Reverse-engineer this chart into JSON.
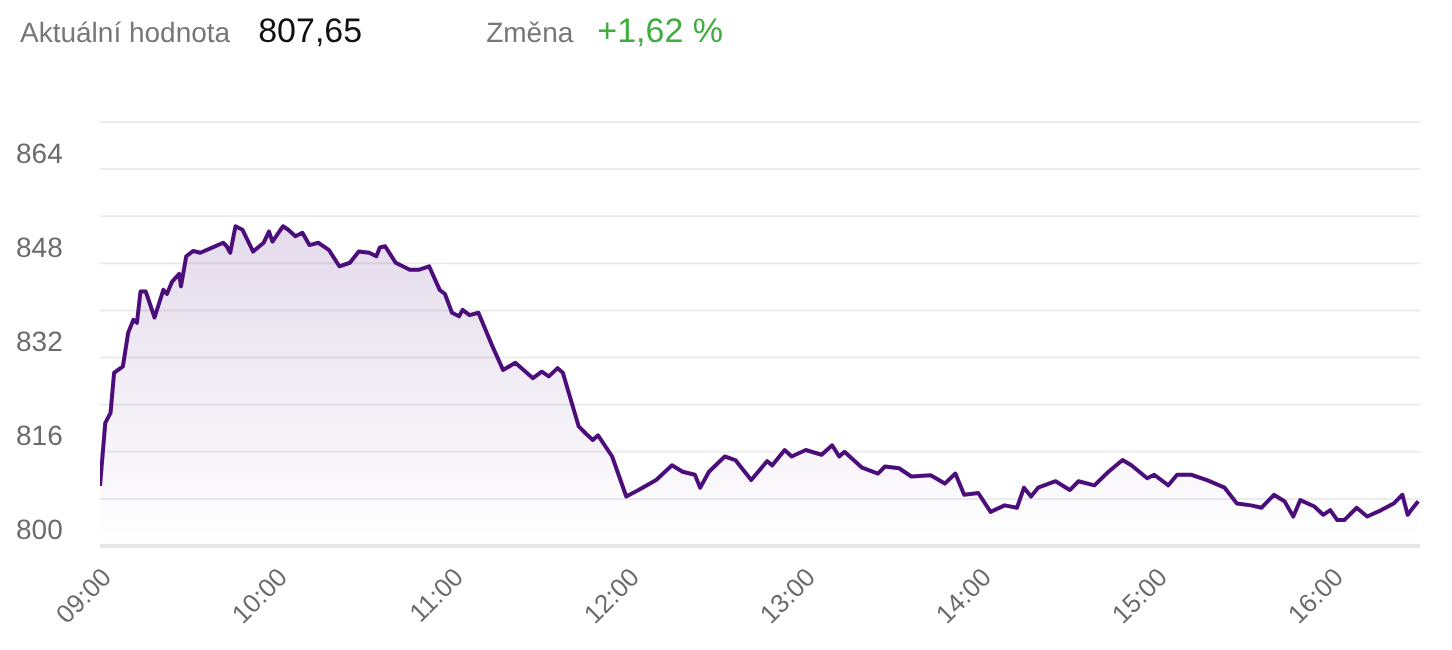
{
  "chart_data": {
    "type": "area",
    "annotations": [
      "Aktuální hodnota",
      "807,65",
      "Změna",
      "+1,62 %"
    ],
    "x": [
      9.0,
      9.03,
      9.06,
      9.08,
      9.13,
      9.16,
      9.19,
      9.21,
      9.23,
      9.26,
      9.31,
      9.36,
      9.38,
      9.41,
      9.45,
      9.46,
      9.49,
      9.53,
      9.57,
      9.64,
      9.7,
      9.72,
      9.74,
      9.77,
      9.81,
      9.87,
      9.93,
      9.96,
      9.98,
      10.04,
      10.07,
      10.11,
      10.15,
      10.19,
      10.24,
      10.3,
      10.36,
      10.42,
      10.47,
      10.53,
      10.57,
      10.59,
      10.62,
      10.68,
      10.76,
      10.81,
      10.87,
      10.93,
      10.96,
      11.0,
      11.04,
      11.06,
      11.1,
      11.15,
      11.23,
      11.29,
      11.36,
      11.46,
      11.51,
      11.55,
      11.6,
      11.63,
      11.72,
      11.76,
      11.8,
      11.83,
      11.91,
      11.99,
      12.06,
      12.16,
      12.25,
      12.31,
      12.38,
      12.41,
      12.46,
      12.55,
      12.61,
      12.7,
      12.79,
      12.82,
      12.89,
      12.93,
      13.01,
      13.1,
      13.16,
      13.2,
      13.23,
      13.33,
      13.42,
      13.46,
      13.54,
      13.61,
      13.72,
      13.8,
      13.86,
      13.91,
      13.99,
      14.06,
      14.14,
      14.21,
      14.25,
      14.29,
      14.33,
      14.43,
      14.51,
      14.56,
      14.65,
      14.73,
      14.81,
      14.86,
      14.95,
      14.99,
      15.07,
      15.12,
      15.2,
      15.29,
      15.39,
      15.46,
      15.54,
      15.6,
      15.67,
      15.73,
      15.78,
      15.82,
      15.9,
      15.95,
      15.99,
      16.03,
      16.07,
      16.14,
      16.2,
      16.28,
      16.35,
      16.4,
      16.43,
      16.45,
      16.49
    ],
    "series": [
      {
        "color": "#4a0d7a",
        "values": [
          810.2,
          820.9,
          822.6,
          829.4,
          830.5,
          836.2,
          838.4,
          837.9,
          843.2,
          843.2,
          838.8,
          843.5,
          842.8,
          844.9,
          846.2,
          844.1,
          849.2,
          850.1,
          849.8,
          850.7,
          851.5,
          850.9,
          849.8,
          854.3,
          853.7,
          850.0,
          851.5,
          853.4,
          851.7,
          854.3,
          853.7,
          852.6,
          853.2,
          851.1,
          851.5,
          850.3,
          847.5,
          848.1,
          850.0,
          849.8,
          849.2,
          850.7,
          850.9,
          848.1,
          846.9,
          846.9,
          847.5,
          843.5,
          842.8,
          839.6,
          839.0,
          840.1,
          839.2,
          839.6,
          833.9,
          829.9,
          831.1,
          828.5,
          829.6,
          828.8,
          830.2,
          829.4,
          820.3,
          819.1,
          818.0,
          818.8,
          815.2,
          808.4,
          809.5,
          811.2,
          813.7,
          812.6,
          812.1,
          809.9,
          812.6,
          815.2,
          814.6,
          811.2,
          814.4,
          813.7,
          816.3,
          815.2,
          816.3,
          815.5,
          817.1,
          815.2,
          816.0,
          813.3,
          812.3,
          813.5,
          813.2,
          811.8,
          812.0,
          810.6,
          812.3,
          808.7,
          809.0,
          805.8,
          806.9,
          806.5,
          809.9,
          808.4,
          809.9,
          811.0,
          809.5,
          811.0,
          810.3,
          812.6,
          814.6,
          813.7,
          811.5,
          812.1,
          810.3,
          812.1,
          812.1,
          811.2,
          809.9,
          807.2,
          806.9,
          806.5,
          808.7,
          807.6,
          805.0,
          807.8,
          806.7,
          805.3,
          806.1,
          804.4,
          804.4,
          806.5,
          805.0,
          806.1,
          807.2,
          808.7,
          805.3,
          806.1,
          807.6
        ]
      }
    ],
    "xlim": [
      9,
      16.5
    ],
    "xticks": [
      {
        "value": 9,
        "label": "09:00"
      },
      {
        "value": 10,
        "label": "10:00"
      },
      {
        "value": 11,
        "label": "11:00"
      },
      {
        "value": 12,
        "label": "12:00"
      },
      {
        "value": 13,
        "label": "13:00"
      },
      {
        "value": 14,
        "label": "14:00"
      },
      {
        "value": 15,
        "label": "15:00"
      },
      {
        "value": 16,
        "label": "16:00"
      }
    ],
    "ylim": [
      800,
      872
    ],
    "yticks": [
      800,
      {
        "value": 808,
        "label": null
      },
      816,
      {
        "value": 824,
        "label": null
      },
      832,
      {
        "value": 840,
        "label": null
      },
      848,
      {
        "value": 856,
        "label": null
      },
      864,
      {
        "value": 872,
        "label": null
      }
    ],
    "grid": "y",
    "marker": "none",
    "line_style": "solid"
  }
}
